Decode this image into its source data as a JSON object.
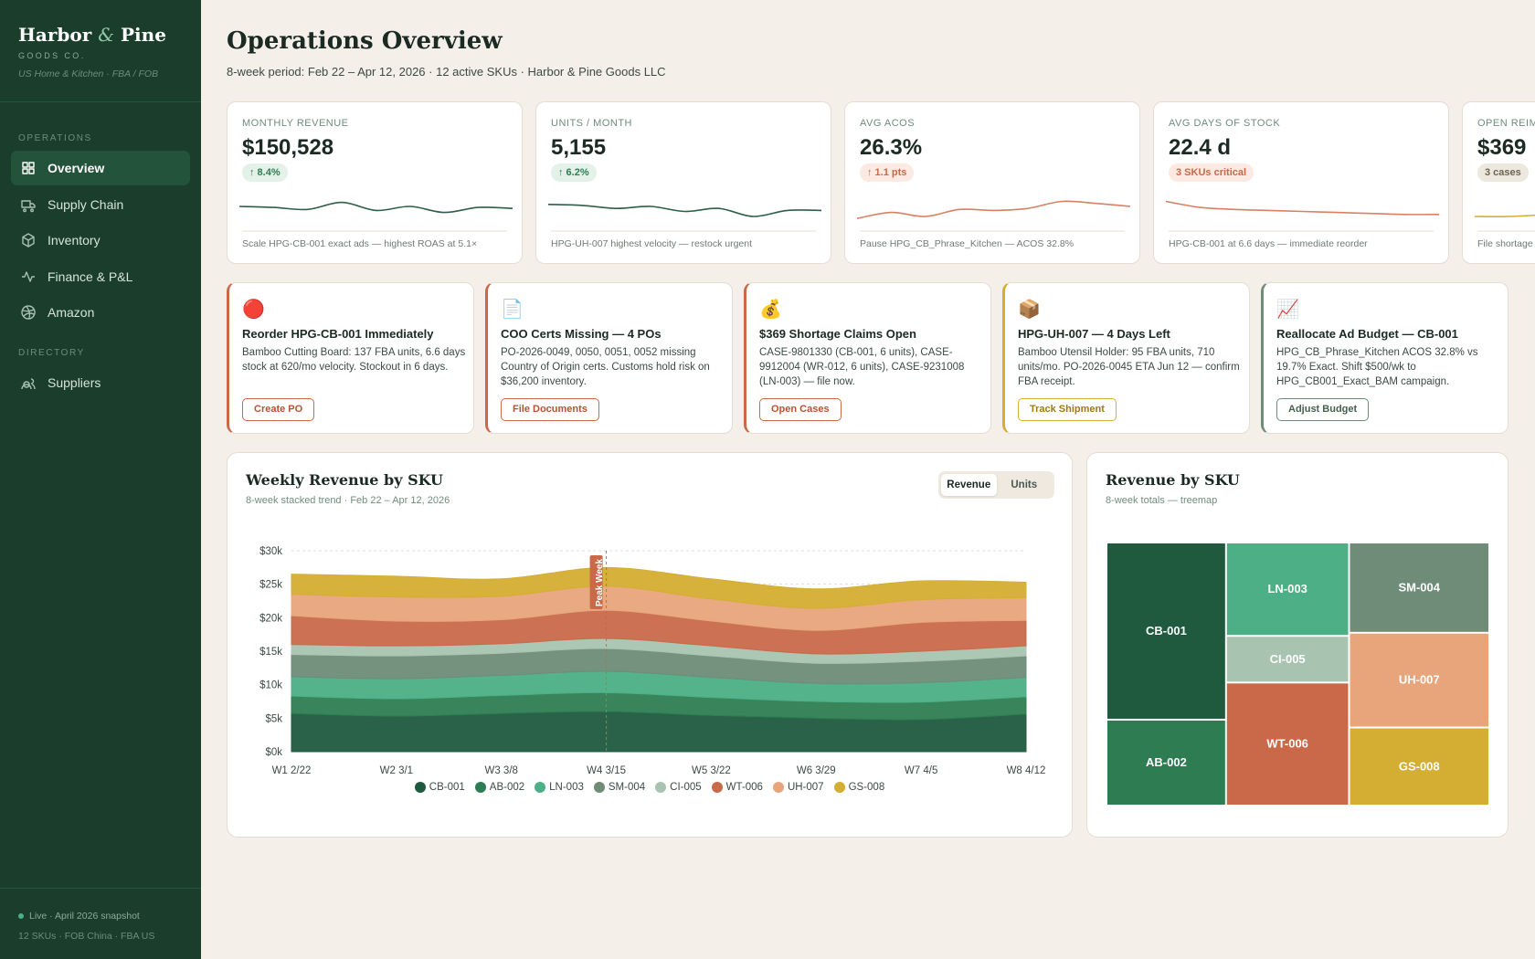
{
  "sidebar": {
    "brand": {
      "first": "Harbor",
      "amp": "&",
      "last": "Pine"
    },
    "tagline": "GOODS CO.",
    "region": "US Home & Kitchen · FBA / FOB",
    "sections": [
      {
        "label": "OPERATIONS",
        "items": [
          "Overview",
          "Supply Chain",
          "Inventory",
          "Finance & P&L",
          "Amazon"
        ]
      },
      {
        "label": "DIRECTORY",
        "items": [
          "Suppliers"
        ]
      }
    ],
    "active": "Overview",
    "footer": {
      "status": "Live · April 2026 snapshot",
      "meta": "12 SKUs · FOB China · FBA US"
    }
  },
  "header": {
    "title": "Operations Overview",
    "subtitle": "8-week period: Feb 22 – Apr 12, 2026 · 12 active SKUs · Harbor & Pine Goods LLC"
  },
  "kpis": [
    {
      "label": "MONTHLY REVENUE",
      "value": "$150,528",
      "badge": "↑ 8.4%",
      "tone": "good",
      "note": "Scale HPG-CB-001 exact ads — highest ROAS at 5.1×",
      "color": "#2e5e48",
      "trend": [
        50,
        49,
        47,
        54,
        46,
        50,
        44,
        49,
        48
      ],
      "trend_range": [
        30,
        70
      ]
    },
    {
      "label": "UNITS / MONTH",
      "value": "5,155",
      "badge": "↑ 6.2%",
      "tone": "good",
      "note": "HPG-UH-007 highest velocity — restock urgent",
      "color": "#2e5e48",
      "trend": [
        52,
        51,
        48,
        50,
        45,
        48,
        40,
        46,
        46
      ],
      "trend_range": [
        30,
        70
      ]
    },
    {
      "label": "AVG ACOS",
      "value": "26.3%",
      "badge": "↑ 1.1 pts",
      "tone": "bad",
      "note": "Pause HPG_CB_Phrase_Kitchen — ACOS 32.8%",
      "color": "#d98063",
      "trend": [
        38,
        44,
        40,
        47,
        46,
        48,
        55,
        53,
        50
      ],
      "trend_range": [
        30,
        70
      ]
    },
    {
      "label": "AVG DAYS OF STOCK",
      "value": "22.4 d",
      "badge": "3 SKUs critical",
      "tone": "bad",
      "note": "HPG-CB-001 at 6.6 days — immediate reorder",
      "color": "#d98063",
      "trend": [
        55,
        49,
        47,
        46,
        45,
        44,
        43,
        42,
        42
      ],
      "trend_range": [
        30,
        70
      ]
    },
    {
      "label": "OPEN REIMBURSEMENTS",
      "value": "$369",
      "badge": "3 cases",
      "tone": "neutral",
      "note": "File shortage claims",
      "color": "#d4ae32",
      "trend": [
        40,
        40,
        42,
        48,
        56,
        62,
        66,
        68,
        69
      ],
      "trend_range": [
        30,
        70
      ]
    }
  ],
  "actions": [
    {
      "icon": "🔴",
      "title": "Reorder HPG-CB-001 Immediately",
      "body": "Bamboo Cutting Board: 137 FBA units, 6.6 days stock at 620/mo velocity. Stockout in 6 days.",
      "button": "Create PO",
      "tone": "red"
    },
    {
      "icon": "📄",
      "title": "COO Certs Missing — 4 POs",
      "body": "PO-2026-0049, 0050, 0051, 0052 missing Country of Origin certs. Customs hold risk on $36,200 inventory.",
      "button": "File Documents",
      "tone": "red"
    },
    {
      "icon": "💰",
      "title": "$369 Shortage Claims Open",
      "body": "CASE-9801330 (CB-001, 6 units), CASE-9912004 (WR-012, 6 units), CASE-9231008 (LN-003) — file now.",
      "button": "Open Cases",
      "tone": "red"
    },
    {
      "icon": "📦",
      "title": "HPG-UH-007 — 4 Days Left",
      "body": "Bamboo Utensil Holder: 95 FBA units, 710 units/mo. PO-2026-0045 ETA Jun 12 — confirm FBA receipt.",
      "button": "Track Shipment",
      "tone": "amber"
    },
    {
      "icon": "📈",
      "title": "Reallocate Ad Budget — CB-001",
      "body": "HPG_CB_Phrase_Kitchen ACOS 32.8% vs 19.7% Exact. Shift $500/wk to HPG_CB001_Exact_BAM campaign.",
      "button": "Adjust Budget",
      "tone": "green"
    }
  ],
  "revenue_chart": {
    "type": "area",
    "title": "Weekly Revenue by SKU",
    "subtitle": "8-week stacked trend · Feb 22 – Apr 12, 2026",
    "toggle": [
      "Revenue",
      "Units"
    ],
    "active_toggle": "Revenue",
    "categories": [
      "W1 2/22",
      "W2 3/1",
      "W3 3/8",
      "W4 3/15",
      "W5 3/22",
      "W6 3/29",
      "W7 4/5",
      "W8 4/12"
    ],
    "series": [
      {
        "name": "CB-001",
        "color": "#1f5a3f",
        "values": [
          5700,
          5300,
          5700,
          6000,
          5400,
          5000,
          4800,
          5600
        ]
      },
      {
        "name": "AB-002",
        "color": "#2e7d52",
        "values": [
          2600,
          2600,
          2700,
          2800,
          2700,
          2500,
          2600,
          2600
        ]
      },
      {
        "name": "LN-003",
        "color": "#4caf85",
        "values": [
          2900,
          3000,
          3000,
          3200,
          3000,
          2700,
          2900,
          2900
        ]
      },
      {
        "name": "SM-004",
        "color": "#6e8c78",
        "values": [
          3300,
          3400,
          3300,
          3400,
          3200,
          3000,
          3200,
          3200
        ]
      },
      {
        "name": "CI-005",
        "color": "#a8c4b0",
        "values": [
          1500,
          1500,
          1400,
          1500,
          1500,
          1400,
          1500,
          1500
        ]
      },
      {
        "name": "WT-006",
        "color": "#c9694a",
        "values": [
          4300,
          3700,
          3600,
          4200,
          3700,
          3500,
          4300,
          3800
        ]
      },
      {
        "name": "UH-007",
        "color": "#e8a57c",
        "values": [
          3200,
          3600,
          3500,
          3600,
          3300,
          3300,
          3400,
          3400
        ]
      },
      {
        "name": "GS-008",
        "color": "#d4ae32",
        "values": [
          3000,
          3100,
          2600,
          2800,
          3000,
          2900,
          2800,
          2300
        ]
      }
    ],
    "ylim": [
      0,
      30000
    ],
    "yticks": [
      {
        "value": 0,
        "label": "$0k"
      },
      {
        "value": 5000,
        "label": "$5k"
      },
      {
        "value": 10000,
        "label": "$10k"
      },
      {
        "value": 15000,
        "label": "$15k"
      },
      {
        "value": 20000,
        "label": "$20k"
      },
      {
        "value": 25000,
        "label": "$25k"
      },
      {
        "value": 30000,
        "label": "$30k"
      }
    ],
    "grid": true,
    "annotation": {
      "text": "Peak Week",
      "category": "W4 3/15"
    }
  },
  "treemap": {
    "title": "Revenue by SKU",
    "subtitle": "8-week totals — treemap"
  }
}
